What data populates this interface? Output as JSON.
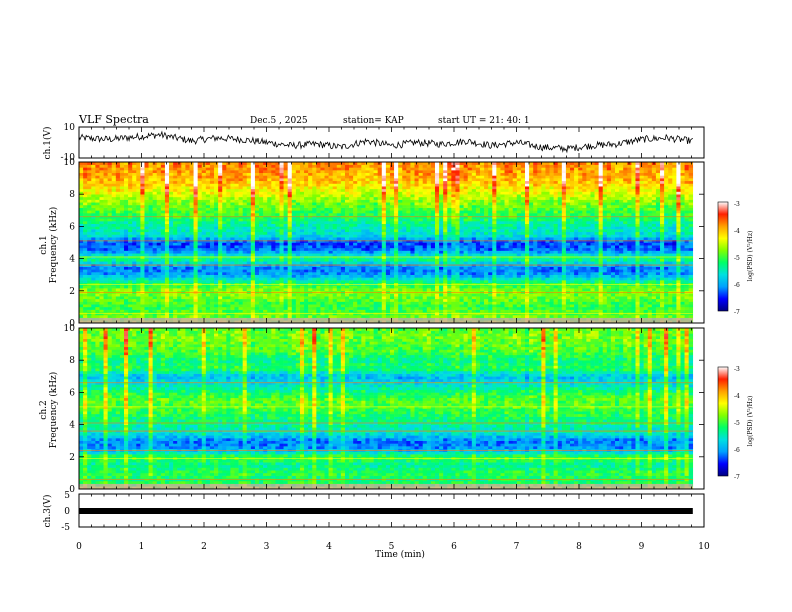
{
  "header": {
    "title": "VLF  Spectra",
    "date": "Dec.5  , 2025",
    "station": "station= KAP",
    "start": "start  UT  =   21: 40: 1"
  },
  "colorbar": {
    "label": "log(PSD) (V²/Hz)",
    "ticks": [
      "-3",
      "-4",
      "-5",
      "-6",
      "-7"
    ],
    "range": [
      -7,
      -3
    ],
    "colors": [
      "#000080",
      "#0000ff",
      "#00a0ff",
      "#00e0e0",
      "#00ff66",
      "#80ff00",
      "#ffff00",
      "#ffa000",
      "#ff2000",
      "#ffffff"
    ]
  },
  "chart_data": [
    {
      "type": "line",
      "name": "ch1-waveform",
      "ylabel": "ch.1(V)",
      "ylim": [
        -10,
        10
      ],
      "ytick_labels": [
        "10",
        "-10"
      ],
      "xlim": [
        0,
        10
      ],
      "x_end": 9.82,
      "description_values": {
        "t": [
          0,
          0.5,
          1.0,
          1.3,
          1.8,
          2.2,
          2.6,
          3.0,
          3.4,
          3.8,
          4.2,
          4.6,
          5.0,
          5.4,
          5.8,
          6.2,
          6.6,
          7.0,
          7.4,
          7.8,
          8.2,
          8.6,
          9.0,
          9.4,
          9.8
        ],
        "v": [
          3,
          2,
          4,
          5,
          1,
          3,
          2,
          0,
          -2,
          -1,
          -3,
          1,
          -2,
          0,
          -1,
          1,
          -2,
          0,
          -3,
          -4,
          -2,
          -1,
          2,
          3,
          1
        ]
      }
    },
    {
      "type": "heatmap",
      "name": "ch1-spectrogram",
      "ylabel": "ch.1\nFrequency  (kHz)",
      "ylim": [
        0,
        10
      ],
      "ytick_labels": [
        "0",
        "2",
        "4",
        "6",
        "8",
        "10"
      ],
      "xlim": [
        0,
        10
      ],
      "x_end": 9.82,
      "zlim": [
        -7,
        -3
      ],
      "freq_kHz": [
        0,
        0.5,
        1,
        1.5,
        2,
        2.5,
        3,
        3.5,
        4,
        4.5,
        5,
        5.5,
        6,
        6.5,
        7,
        7.5,
        8,
        8.5,
        9,
        9.5,
        10
      ],
      "log_psd": [
        -4.6,
        -4.9,
        -5.1,
        -4.9,
        -4.8,
        -5.2,
        -6.1,
        -6.2,
        -5.2,
        -6.2,
        -6.4,
        -5.6,
        -5.5,
        -5.2,
        -5.0,
        -4.8,
        -4.5,
        -4.2,
        -4.0,
        -3.9,
        -3.8
      ]
    },
    {
      "type": "heatmap",
      "name": "ch2-spectrogram",
      "ylabel": "ch.2\nFrequency  (kHz)",
      "ylim": [
        0,
        10
      ],
      "ytick_labels": [
        "0",
        "2",
        "4",
        "6",
        "8",
        "10"
      ],
      "xlim": [
        0,
        10
      ],
      "x_end": 9.82,
      "zlim": [
        -7,
        -3
      ],
      "freq_kHz": [
        0,
        0.5,
        1,
        1.5,
        2,
        2.5,
        3,
        3.5,
        4,
        4.5,
        5,
        5.5,
        6,
        6.5,
        7,
        7.5,
        8,
        8.5,
        9,
        9.5,
        10
      ],
      "log_psd": [
        -4.4,
        -5.3,
        -5.1,
        -5.4,
        -5.0,
        -6.1,
        -6.2,
        -5.6,
        -5.4,
        -5.2,
        -5.0,
        -4.9,
        -5.2,
        -5.6,
        -5.9,
        -5.1,
        -5.3,
        -5.0,
        -4.9,
        -4.8,
        -4.9
      ]
    },
    {
      "type": "line",
      "name": "ch3-waveform",
      "ylabel": "ch.3(V)",
      "ylim": [
        -5,
        5
      ],
      "ytick_labels": [
        "5",
        "0",
        "-5"
      ],
      "xlim": [
        0,
        10
      ],
      "x_end": 9.82,
      "constant_value": 0
    }
  ],
  "xaxis": {
    "label": "Time  (min)",
    "tick_labels": [
      "0",
      "1",
      "2",
      "3",
      "4",
      "5",
      "6",
      "7",
      "8",
      "9",
      "10"
    ],
    "range": [
      0,
      10
    ]
  }
}
